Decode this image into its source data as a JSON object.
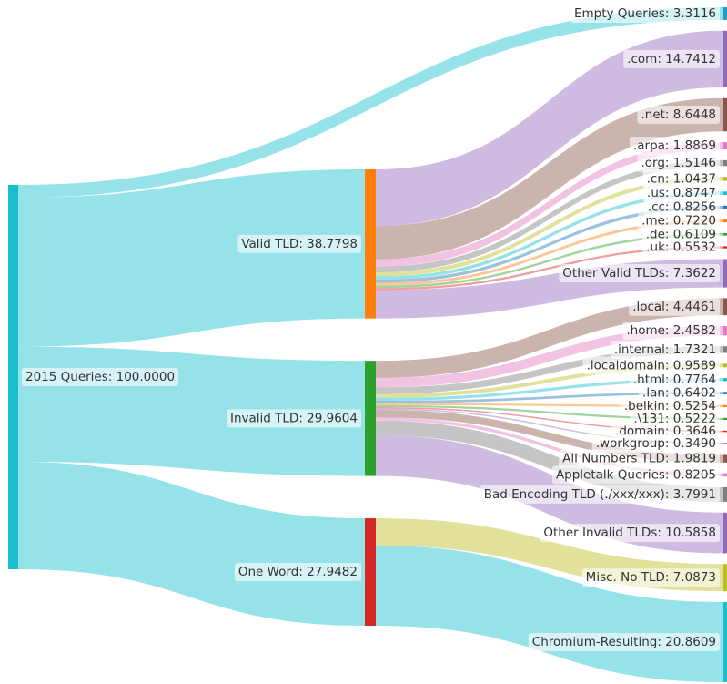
{
  "chart_data": {
    "type": "sankey",
    "nodes": [
      {
        "label": "2015 Queries: 100.0000",
        "value": 100.0,
        "color": "#17becf"
      },
      {
        "label": "Empty Queries: 3.3116",
        "value": 3.3116,
        "color": "#1f9bc8"
      },
      {
        "label": "Valid TLD: 38.7798",
        "value": 38.7798,
        "color": "#ff7f0e"
      },
      {
        "label": "Invalid TLD: 29.9604",
        "value": 29.9604,
        "color": "#2ca02c"
      },
      {
        "label": "One Word: 27.9482",
        "value": 27.9482,
        "color": "#d62728"
      },
      {
        "label": ".com: 14.7412",
        "value": 14.7412,
        "color": "#9467bd"
      },
      {
        "label": ".net: 8.6448",
        "value": 8.6448,
        "color": "#8c564b"
      },
      {
        "label": ".arpa: 1.8869",
        "value": 1.8869,
        "color": "#e377c2"
      },
      {
        "label": ".org: 1.5146",
        "value": 1.5146,
        "color": "#7f7f7f"
      },
      {
        "label": ".cn: 1.0437",
        "value": 1.0437,
        "color": "#bcbd22"
      },
      {
        "label": ".us: 0.8747",
        "value": 0.8747,
        "color": "#17becf"
      },
      {
        "label": ".cc: 0.8256",
        "value": 0.8256,
        "color": "#1f77b4"
      },
      {
        "label": ".me: 0.7220",
        "value": 0.722,
        "color": "#ff7f0e"
      },
      {
        "label": ".de: 0.6109",
        "value": 0.6109,
        "color": "#2ca02c"
      },
      {
        "label": ".uk: 0.5532",
        "value": 0.5532,
        "color": "#d62728"
      },
      {
        "label": "Other Valid TLDs: 7.3622",
        "value": 7.3622,
        "color": "#9467bd"
      },
      {
        "label": ".local: 4.4461",
        "value": 4.4461,
        "color": "#8c564b"
      },
      {
        "label": ".home: 2.4582",
        "value": 2.4582,
        "color": "#e377c2"
      },
      {
        "label": ".internal: 1.7321",
        "value": 1.7321,
        "color": "#7f7f7f"
      },
      {
        "label": ".localdomain: 0.9589",
        "value": 0.9589,
        "color": "#bcbd22"
      },
      {
        "label": ".html: 0.7764",
        "value": 0.7764,
        "color": "#17becf"
      },
      {
        "label": ".lan: 0.6402",
        "value": 0.6402,
        "color": "#1f77b4"
      },
      {
        "label": ".belkin: 0.5254",
        "value": 0.5254,
        "color": "#ff7f0e"
      },
      {
        "label": ".\\131: 0.5222",
        "value": 0.5222,
        "color": "#2ca02c"
      },
      {
        "label": ".domain: 0.3646",
        "value": 0.3646,
        "color": "#d62728"
      },
      {
        "label": ".workgroup: 0.3490",
        "value": 0.349,
        "color": "#9467bd"
      },
      {
        "label": "All Numbers TLD: 1.9819",
        "value": 1.9819,
        "color": "#8c564b"
      },
      {
        "label": "Appletalk Queries: 0.8205",
        "value": 0.8205,
        "color": "#e377c2"
      },
      {
        "label": "Bad Encoding TLD (./xxx/xxx): 3.7991",
        "value": 3.7991,
        "color": "#7f7f7f"
      },
      {
        "label": "Other Invalid TLDs: 10.5858",
        "value": 10.5858,
        "color": "#9467bd"
      },
      {
        "label": "Misc. No TLD: 7.0873",
        "value": 7.0873,
        "color": "#bcbd22"
      },
      {
        "label": "Chromium-Resulting: 20.8609",
        "value": 20.8609,
        "color": "#17becf"
      }
    ],
    "links": [
      {
        "source": 0,
        "target": 1,
        "value": 3.3116,
        "color": "#17becf"
      },
      {
        "source": 0,
        "target": 2,
        "value": 38.7798,
        "color": "#17becf"
      },
      {
        "source": 0,
        "target": 3,
        "value": 29.9604,
        "color": "#17becf"
      },
      {
        "source": 0,
        "target": 4,
        "value": 27.9482,
        "color": "#17becf"
      },
      {
        "source": 2,
        "target": 5,
        "value": 14.7412,
        "color": "#9467bd"
      },
      {
        "source": 2,
        "target": 6,
        "value": 8.6448,
        "color": "#8c564b"
      },
      {
        "source": 2,
        "target": 7,
        "value": 1.8869,
        "color": "#e377c2"
      },
      {
        "source": 2,
        "target": 8,
        "value": 1.5146,
        "color": "#7f7f7f"
      },
      {
        "source": 2,
        "target": 9,
        "value": 1.0437,
        "color": "#bcbd22"
      },
      {
        "source": 2,
        "target": 10,
        "value": 0.8747,
        "color": "#17becf"
      },
      {
        "source": 2,
        "target": 11,
        "value": 0.8256,
        "color": "#1f77b4"
      },
      {
        "source": 2,
        "target": 12,
        "value": 0.722,
        "color": "#ff7f0e"
      },
      {
        "source": 2,
        "target": 13,
        "value": 0.6109,
        "color": "#2ca02c"
      },
      {
        "source": 2,
        "target": 14,
        "value": 0.5532,
        "color": "#d62728"
      },
      {
        "source": 2,
        "target": 15,
        "value": 7.3622,
        "color": "#9467bd"
      },
      {
        "source": 3,
        "target": 16,
        "value": 4.4461,
        "color": "#8c564b"
      },
      {
        "source": 3,
        "target": 17,
        "value": 2.4582,
        "color": "#e377c2"
      },
      {
        "source": 3,
        "target": 18,
        "value": 1.7321,
        "color": "#7f7f7f"
      },
      {
        "source": 3,
        "target": 19,
        "value": 0.9589,
        "color": "#bcbd22"
      },
      {
        "source": 3,
        "target": 20,
        "value": 0.7764,
        "color": "#17becf"
      },
      {
        "source": 3,
        "target": 21,
        "value": 0.6402,
        "color": "#1f77b4"
      },
      {
        "source": 3,
        "target": 22,
        "value": 0.5254,
        "color": "#ff7f0e"
      },
      {
        "source": 3,
        "target": 23,
        "value": 0.5222,
        "color": "#2ca02c"
      },
      {
        "source": 3,
        "target": 24,
        "value": 0.3646,
        "color": "#d62728"
      },
      {
        "source": 3,
        "target": 25,
        "value": 0.349,
        "color": "#9467bd"
      },
      {
        "source": 3,
        "target": 26,
        "value": 1.9819,
        "color": "#8c564b"
      },
      {
        "source": 3,
        "target": 27,
        "value": 0.8205,
        "color": "#e377c2"
      },
      {
        "source": 3,
        "target": 28,
        "value": 3.7991,
        "color": "#7f7f7f"
      },
      {
        "source": 3,
        "target": 29,
        "value": 10.5858,
        "color": "#9467bd"
      },
      {
        "source": 4,
        "target": 30,
        "value": 7.0873,
        "color": "#bcbd22"
      },
      {
        "source": 4,
        "target": 31,
        "value": 20.8609,
        "color": "#17becf"
      }
    ]
  }
}
